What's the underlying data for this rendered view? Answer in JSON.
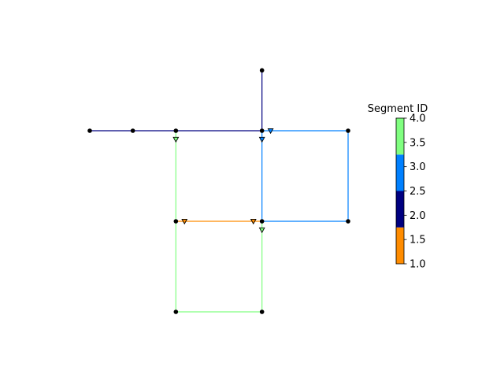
{
  "colorbar": {
    "title": "Segment ID",
    "ticks": [
      {
        "value": 1.0,
        "label": "1.0"
      },
      {
        "value": 1.5,
        "label": "1.5"
      },
      {
        "value": 2.0,
        "label": "2.0"
      },
      {
        "value": 2.5,
        "label": "2.5"
      },
      {
        "value": 3.0,
        "label": "3.0"
      },
      {
        "value": 3.5,
        "label": "3.5"
      },
      {
        "value": 4.0,
        "label": "4.0"
      }
    ],
    "range": [
      1.0,
      4.0
    ],
    "segments": [
      {
        "from": 1.0,
        "to": 1.75,
        "color": "#ff8c00"
      },
      {
        "from": 1.75,
        "to": 2.5,
        "color": "#000080"
      },
      {
        "from": 2.5,
        "to": 3.25,
        "color": "#0080ff"
      },
      {
        "from": 3.25,
        "to": 4.0,
        "color": "#80ff80"
      }
    ]
  },
  "segment_colors": {
    "1": "#ff8c00",
    "2": "#000080",
    "3": "#0080ff",
    "4": "#80ff80"
  },
  "nodes": [
    {
      "id": "a",
      "x": 0,
      "y": 0
    },
    {
      "id": "b",
      "x": 1,
      "y": 0
    },
    {
      "id": "c",
      "x": 2,
      "y": 0
    },
    {
      "id": "d",
      "x": 4,
      "y": 0
    },
    {
      "id": "e",
      "x": 6,
      "y": 0
    },
    {
      "id": "f",
      "x": 4,
      "y": 1.4
    },
    {
      "id": "g",
      "x": 2,
      "y": -2.1
    },
    {
      "id": "h",
      "x": 4,
      "y": -2.1
    },
    {
      "id": "i",
      "x": 6,
      "y": -2.1
    },
    {
      "id": "j",
      "x": 2,
      "y": -4.2
    },
    {
      "id": "k",
      "x": 4,
      "y": -4.2
    }
  ],
  "edges": [
    {
      "from": "a",
      "to": "b",
      "segment": 2
    },
    {
      "from": "b",
      "to": "c",
      "segment": 2
    },
    {
      "from": "c",
      "to": "d",
      "segment": 2
    },
    {
      "from": "d",
      "to": "f",
      "segment": 2
    },
    {
      "from": "d",
      "to": "e",
      "segment": 3
    },
    {
      "from": "e",
      "to": "i",
      "segment": 3
    },
    {
      "from": "i",
      "to": "h",
      "segment": 3
    },
    {
      "from": "h",
      "to": "d",
      "segment": 3
    },
    {
      "from": "g",
      "to": "h",
      "segment": 1
    },
    {
      "from": "c",
      "to": "g",
      "segment": 4
    },
    {
      "from": "g",
      "to": "j",
      "segment": 4
    },
    {
      "from": "j",
      "to": "k",
      "segment": 4
    },
    {
      "from": "k",
      "to": "h",
      "segment": 4
    }
  ],
  "markers": [
    {
      "x": 2.0,
      "y": -0.2,
      "segment": 4
    },
    {
      "x": 4.0,
      "y": -0.2,
      "segment": 3
    },
    {
      "x": 4.2,
      "y": 0.0,
      "segment": 3
    },
    {
      "x": 2.2,
      "y": -2.1,
      "segment": 1
    },
    {
      "x": 3.8,
      "y": -2.1,
      "segment": 1
    },
    {
      "x": 4.0,
      "y": -2.3,
      "segment": 4
    }
  ]
}
